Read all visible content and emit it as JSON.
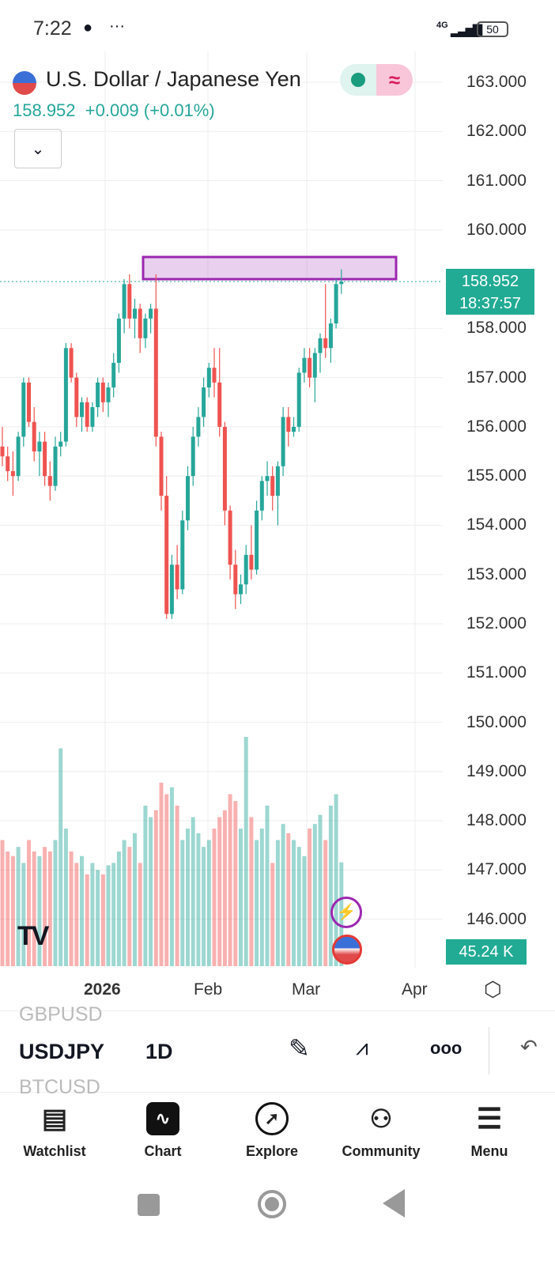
{
  "status_bar": {
    "time": "7:22",
    "network": "4G",
    "battery": "50"
  },
  "header": {
    "title": "U.S. Dollar / Japanese Yen",
    "price": "158.952",
    "change": "+0.009",
    "change_pct": "(+0.01%)"
  },
  "price_axis": {
    "labels": [
      "163.000",
      "162.000",
      "161.000",
      "160.000",
      "158.000",
      "157.000",
      "156.000",
      "155.000",
      "154.000",
      "153.000",
      "152.000",
      "151.000",
      "150.000",
      "149.000",
      "148.000",
      "147.000",
      "146.000"
    ],
    "last_price": "158.952",
    "countdown": "18:37:57",
    "volume_label": "45.24 K"
  },
  "time_axis": {
    "labels": [
      "2026",
      "Feb",
      "Mar",
      "Apr"
    ]
  },
  "symbol_bar": {
    "prev": "GBPUSD",
    "symbol": "USDJPY",
    "next": "BTCUSD",
    "interval": "1D"
  },
  "nav": [
    "Watchlist",
    "Chart",
    "Explore",
    "Community",
    "Menu"
  ],
  "colors": {
    "up": "#26a69a",
    "down": "#ef5350",
    "zone": "#9c27b0",
    "tag": "#22ab94"
  },
  "chart_data": {
    "type": "candlestick",
    "symbol": "USDJPY",
    "interval": "1D",
    "ylim": [
      145.5,
      163.4
    ],
    "ohlc": [
      [
        155.6,
        156.0,
        155.2,
        155.4
      ],
      [
        155.4,
        155.6,
        154.9,
        155.1
      ],
      [
        155.1,
        155.5,
        154.6,
        155.0
      ],
      [
        155.0,
        155.9,
        154.9,
        155.8
      ],
      [
        155.8,
        157.0,
        155.6,
        156.9
      ],
      [
        156.9,
        157.0,
        156.0,
        156.1
      ],
      [
        156.1,
        156.4,
        155.3,
        155.5
      ],
      [
        155.5,
        155.9,
        155.0,
        155.7
      ],
      [
        155.7,
        155.9,
        154.8,
        155.0
      ],
      [
        155.0,
        155.3,
        154.5,
        154.8
      ],
      [
        154.8,
        155.8,
        154.7,
        155.6
      ],
      [
        155.6,
        155.9,
        155.4,
        155.7
      ],
      [
        155.7,
        157.7,
        155.6,
        157.6
      ],
      [
        157.6,
        157.7,
        156.9,
        157.0
      ],
      [
        157.0,
        157.1,
        156.0,
        156.2
      ],
      [
        156.2,
        156.6,
        155.9,
        156.5
      ],
      [
        156.5,
        156.6,
        155.9,
        156.0
      ],
      [
        156.0,
        156.5,
        155.9,
        156.4
      ],
      [
        156.4,
        157.0,
        156.2,
        156.9
      ],
      [
        156.9,
        157.0,
        156.3,
        156.5
      ],
      [
        156.5,
        156.9,
        156.2,
        156.8
      ],
      [
        156.8,
        157.5,
        156.6,
        157.3
      ],
      [
        157.3,
        158.3,
        157.1,
        158.2
      ],
      [
        158.2,
        159.0,
        157.9,
        158.9
      ],
      [
        158.9,
        159.1,
        158.0,
        158.2
      ],
      [
        158.2,
        158.6,
        157.8,
        158.4
      ],
      [
        158.4,
        158.5,
        157.5,
        157.8
      ],
      [
        157.8,
        158.3,
        157.6,
        158.2
      ],
      [
        158.2,
        158.5,
        157.9,
        158.4
      ],
      [
        158.4,
        159.1,
        155.6,
        155.8
      ],
      [
        155.8,
        155.9,
        154.3,
        154.6
      ],
      [
        154.6,
        155.0,
        152.1,
        152.2
      ],
      [
        152.2,
        153.4,
        152.1,
        153.2
      ],
      [
        153.2,
        153.6,
        152.5,
        152.7
      ],
      [
        152.7,
        154.3,
        152.6,
        154.1
      ],
      [
        154.1,
        155.2,
        153.9,
        155.0
      ],
      [
        155.0,
        156.0,
        154.8,
        155.8
      ],
      [
        155.8,
        156.4,
        155.6,
        156.2
      ],
      [
        156.2,
        157.0,
        156.0,
        156.8
      ],
      [
        156.8,
        157.3,
        156.6,
        157.2
      ],
      [
        157.2,
        157.6,
        156.6,
        156.9
      ],
      [
        156.9,
        157.6,
        155.8,
        156.0
      ],
      [
        156.0,
        156.1,
        154.0,
        154.3
      ],
      [
        154.3,
        154.4,
        152.9,
        153.2
      ],
      [
        153.2,
        153.5,
        152.3,
        152.6
      ],
      [
        152.6,
        153.0,
        152.4,
        152.8
      ],
      [
        152.8,
        153.6,
        152.6,
        153.4
      ],
      [
        153.4,
        154.0,
        152.9,
        153.1
      ],
      [
        153.1,
        154.5,
        153.0,
        154.3
      ],
      [
        154.3,
        155.0,
        154.1,
        154.9
      ],
      [
        154.9,
        155.3,
        154.6,
        155.0
      ],
      [
        155.0,
        155.2,
        154.3,
        154.6
      ],
      [
        154.6,
        155.3,
        154.0,
        155.2
      ],
      [
        155.2,
        156.4,
        155.0,
        156.2
      ],
      [
        156.2,
        156.4,
        155.6,
        155.9
      ],
      [
        155.9,
        156.2,
        155.8,
        156.0
      ],
      [
        156.0,
        157.2,
        155.9,
        157.1
      ],
      [
        157.1,
        157.6,
        156.9,
        157.4
      ],
      [
        157.4,
        157.6,
        156.8,
        157.0
      ],
      [
        157.0,
        157.6,
        156.5,
        157.5
      ],
      [
        157.5,
        157.9,
        157.1,
        157.8
      ],
      [
        157.8,
        158.9,
        157.4,
        157.6
      ],
      [
        157.6,
        158.2,
        157.3,
        158.1
      ],
      [
        158.1,
        159.0,
        158.0,
        158.9
      ],
      [
        158.9,
        159.2,
        158.7,
        158.952
      ]
    ],
    "volume_k": [
      55,
      50,
      48,
      52,
      45,
      55,
      50,
      48,
      52,
      50,
      55,
      95,
      60,
      50,
      45,
      48,
      40,
      45,
      42,
      40,
      44,
      45,
      50,
      55,
      52,
      58,
      45,
      70,
      65,
      68,
      80,
      75,
      78,
      70,
      55,
      60,
      65,
      58,
      52,
      55,
      60,
      65,
      68,
      75,
      72,
      60,
      100,
      65,
      55,
      60,
      70,
      45,
      55,
      62,
      58,
      55,
      52,
      48,
      60,
      62,
      66,
      55,
      70,
      75,
      45.24
    ],
    "zone": {
      "low": 159.0,
      "high": 159.45
    },
    "last_price": 158.952
  }
}
